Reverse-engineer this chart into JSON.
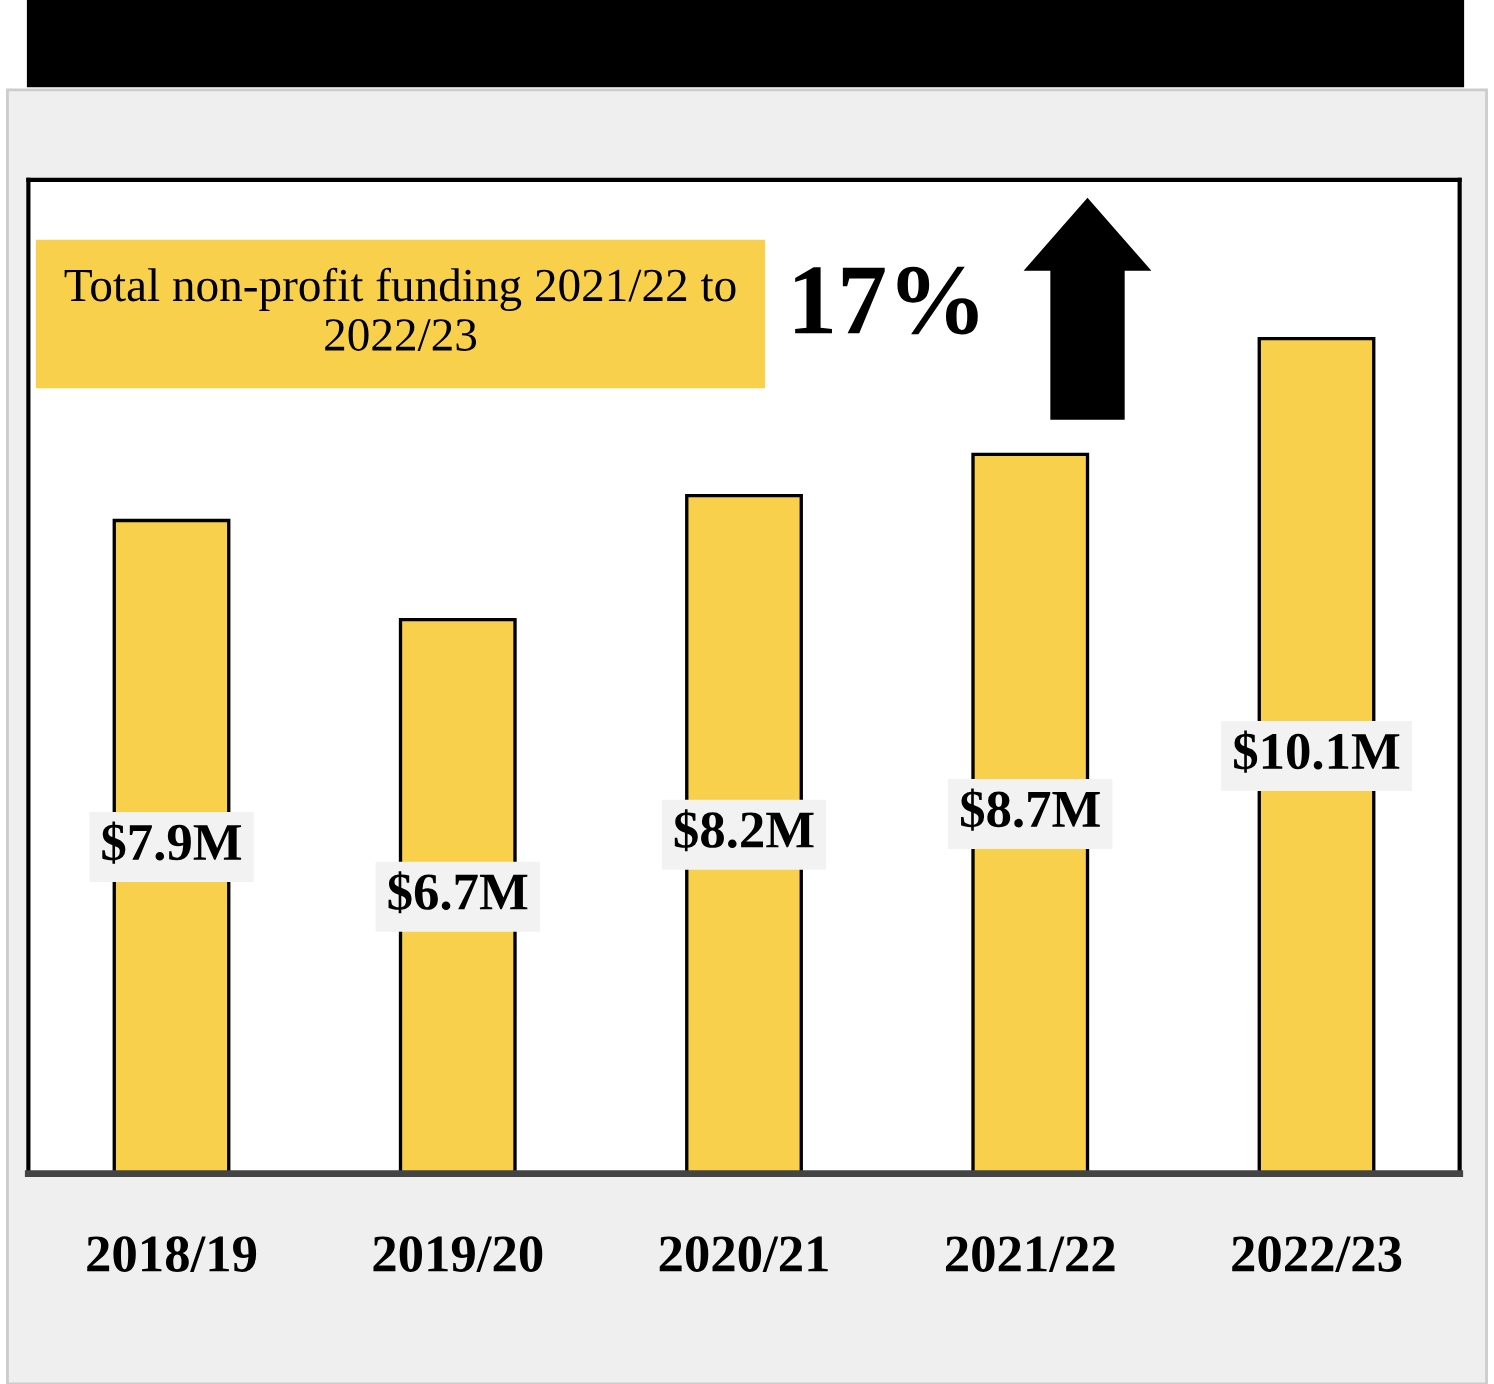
{
  "chart_data": {
    "type": "bar",
    "categories": [
      "2018/19",
      "2019/20",
      "2020/21",
      "2021/22",
      "2022/23"
    ],
    "values": [
      7.9,
      6.7,
      8.2,
      8.7,
      10.1
    ],
    "value_labels": [
      "$7.9M",
      "$6.7M",
      "$8.2M",
      "$8.7M",
      "$10.1M"
    ],
    "color": "#f9d04b",
    "grid": false,
    "legend": false,
    "annotations": [
      "Total non-profit funding 2021/22 to 2022/23",
      "17%"
    ]
  }
}
